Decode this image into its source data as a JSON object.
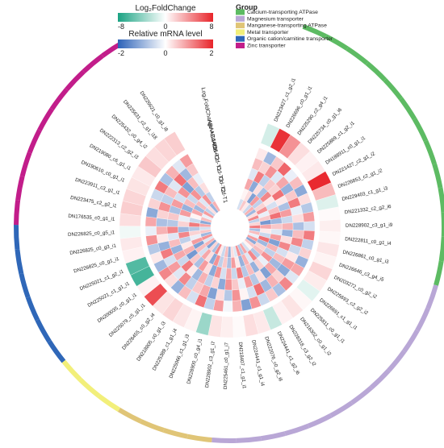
{
  "chart_data": {
    "type": "heatmap",
    "legends": {
      "fold": {
        "title": "Log₂FoldChange",
        "min": -8,
        "mid": 0,
        "max": 8,
        "ticks": [
          "-8",
          "0",
          "8"
        ],
        "colors": [
          "#1aa383",
          "#ffffff",
          "#e8242a"
        ]
      },
      "mrna": {
        "title": "Relative mRNA level",
        "min": -2,
        "mid": 0,
        "max": 2,
        "ticks": [
          "-2",
          "0",
          "2"
        ],
        "colors": [
          "#2c62b8",
          "#ffffff",
          "#e8242a"
        ]
      },
      "group": {
        "title": "Group",
        "entries": [
          {
            "name": "Calcium-transporting ATPase",
            "color": "#5dbb63"
          },
          {
            "name": "Magnesium transporter",
            "color": "#b9a7d6"
          },
          {
            "name": "Manganese-transporting ATPase",
            "color": "#e0c577"
          },
          {
            "name": "Metal transporter",
            "color": "#f2ef7a"
          },
          {
            "name": "Organic cation/carnitine transporter",
            "color": "#2f67b8"
          },
          {
            "name": "Zinc transporter",
            "color": "#c21d8a"
          }
        ]
      }
    },
    "tracks": [
      "Log₂FoldChange",
      "ABA+Cd-T3",
      "ABA+Cd-T2",
      "ABA+Cd-T1",
      "Cd-T3",
      "Cd-T2",
      "Cd-T1"
    ],
    "genes": [
      {
        "id": "DN223427_c1_g2_i1",
        "group": "Calcium-transporting ATPase",
        "fc": -1.5,
        "values": [
          0.2,
          0.6,
          -0.3,
          0.8,
          0.1,
          -0.4
        ]
      },
      {
        "id": "DN226696_c0_g1_i1",
        "group": "Calcium-transporting ATPase",
        "fc": 7.5,
        "values": [
          -0.9,
          0.4,
          1.2,
          -1.1,
          0.3,
          0.5
        ]
      },
      {
        "id": "DN225290_c2_g4_i1",
        "group": "Calcium-transporting ATPase",
        "fc": 4.0,
        "values": [
          0.5,
          1.0,
          -0.6,
          0.3,
          -1.2,
          0.2
        ]
      },
      {
        "id": "DN225734_c0_g1_i6",
        "group": "Calcium-transporting ATPase",
        "fc": 1.2,
        "values": [
          1.4,
          -0.3,
          0.5,
          -0.8,
          0.9,
          -0.5
        ]
      },
      {
        "id": "DN225869_c1_g2_i1",
        "group": "Calcium-transporting ATPase",
        "fc": 0.5,
        "values": [
          -0.2,
          0.8,
          0.4,
          1.1,
          -0.6,
          0.7
        ]
      },
      {
        "id": "DN188911_c0_g1_i1",
        "group": "Calcium-transporting ATPase",
        "fc": 0.8,
        "values": [
          0.6,
          -1.0,
          1.3,
          0.2,
          0.4,
          -0.9
        ]
      },
      {
        "id": "DN221427_c2_g1_i2",
        "group": "Calcium-transporting ATPase",
        "fc": 7.8,
        "values": [
          -1.1,
          0.5,
          0.2,
          -0.4,
          1.0,
          0.3
        ]
      },
      {
        "id": "DN226853_c2_g1_i2",
        "group": "Calcium-transporting ATPase",
        "fc": 2.5,
        "values": [
          0.3,
          1.2,
          -0.8,
          0.6,
          -0.2,
          1.1
        ]
      },
      {
        "id": "DN229403_c1_g1_i3",
        "group": "Calcium-transporting ATPase",
        "fc": -1.2,
        "values": [
          -0.7,
          -0.2,
          0.9,
          1.3,
          0.5,
          -0.6
        ]
      },
      {
        "id": "DN221332_c2_g2_i6",
        "group": "Calcium-transporting ATPase",
        "fc": 0.2,
        "values": [
          0.9,
          0.3,
          -0.5,
          -0.9,
          -1.3,
          0.4
        ]
      },
      {
        "id": "DN228902_c3_g1_i9",
        "group": "Calcium-transporting ATPase",
        "fc": 0.6,
        "values": [
          -0.4,
          -0.8,
          0.7,
          0.5,
          0.8,
          1.2
        ]
      },
      {
        "id": "DN222811_c0_g1_i4",
        "group": "Calcium-transporting ATPase",
        "fc": 0.3,
        "values": [
          1.2,
          0.6,
          -1.0,
          -0.3,
          0.2,
          -0.8
        ]
      },
      {
        "id": "DN226861_c0_g1_i3",
        "group": "Calcium-transporting ATPase",
        "fc": 0.9,
        "values": [
          -0.6,
          1.1,
          0.3,
          0.9,
          -0.5,
          0.6
        ]
      },
      {
        "id": "DN226646_c3_g4_i5",
        "group": "Magnesium transporter",
        "fc": 0.4,
        "values": [
          0.4,
          -0.5,
          1.1,
          -1.2,
          1.3,
          -0.2
        ]
      },
      {
        "id": "DN203272_c0_g2_i2",
        "group": "Magnesium transporter",
        "fc": 1.5,
        "values": [
          -1.0,
          0.2,
          -0.4,
          0.7,
          -0.9,
          0.9
        ]
      },
      {
        "id": "DN225693_c2_g2_i2",
        "group": "Magnesium transporter",
        "fc": 0.7,
        "values": [
          0.8,
          0.9,
          0.6,
          -0.6,
          0.4,
          -1.1
        ]
      },
      {
        "id": "DN226691_c1_g1_i1",
        "group": "Magnesium transporter",
        "fc": -1.0,
        "values": [
          -0.3,
          -1.1,
          -0.9,
          1.0,
          0.6,
          0.5
        ]
      },
      {
        "id": "DN225811_c0_g1_i1",
        "group": "Magnesium transporter",
        "fc": 0.3,
        "values": [
          1.1,
          0.4,
          0.8,
          -0.2,
          -0.7,
          0.1
        ]
      },
      {
        "id": "DN216302_c0_g1_i2",
        "group": "Magnesium transporter",
        "fc": 1.0,
        "values": [
          -0.8,
          0.7,
          -1.2,
          0.4,
          1.1,
          -0.4
        ]
      },
      {
        "id": "DN228318_c3_g2_i2",
        "group": "Magnesium transporter",
        "fc": 0.5,
        "values": [
          0.5,
          -0.9,
          0.3,
          -1.0,
          -0.3,
          0.8
        ]
      },
      {
        "id": "DN224441_c1_g2_i6",
        "group": "Magnesium transporter",
        "fc": -2.0,
        "values": [
          -0.5,
          1.3,
          -0.7,
          0.6,
          0.7,
          -0.7
        ]
      },
      {
        "id": "DN222076_c0_g2_i6",
        "group": "Magnesium transporter",
        "fc": 0.8,
        "values": [
          1.0,
          -0.4,
          0.9,
          -0.7,
          -1.0,
          1.0
        ]
      },
      {
        "id": "DN224441_c1_g1_i4",
        "group": "Magnesium transporter",
        "fc": 1.2,
        "values": [
          -1.2,
          0.1,
          -0.2,
          1.2,
          0.2,
          -0.3
        ]
      },
      {
        "id": "DN218407_c1_g1_i1",
        "group": "Magnesium transporter",
        "fc": 0.2,
        "values": [
          0.7,
          1.0,
          0.5,
          -0.5,
          0.9,
          0.3
        ]
      },
      {
        "id": "DN225461_c0_g1_i7",
        "group": "Magnesium transporter",
        "fc": 0.6,
        "values": [
          -0.1,
          -0.7,
          1.0,
          0.8,
          -0.8,
          -1.0
        ]
      },
      {
        "id": "DN228902_c3_g1_i7",
        "group": "Manganese-transporting ATPase",
        "fc": 1.0,
        "values": [
          0.9,
          0.3,
          -1.1,
          -0.4,
          0.5,
          0.6
        ]
      },
      {
        "id": "DN228900_c0_g4_i1",
        "group": "Manganese-transporting ATPase",
        "fc": -3.5,
        "values": [
          -0.6,
          -1.2,
          0.4,
          1.0,
          -0.6,
          -0.5
        ]
      },
      {
        "id": "DN225066_c1_g1_i3",
        "group": "Manganese-transporting ATPase",
        "fc": 0.4,
        "values": [
          1.3,
          0.8,
          -0.6,
          -1.1,
          1.0,
          0.2
        ]
      },
      {
        "id": "DN225389_c1_g1_i4",
        "group": "Manganese-transporting ATPase",
        "fc": 0.9,
        "values": [
          -0.4,
          0.5,
          0.7,
          0.3,
          -1.1,
          1.1
        ]
      },
      {
        "id": "DN218805_c0_g1_i3",
        "group": "Metal transporter",
        "fc": 1.5,
        "values": [
          0.6,
          -0.6,
          -0.9,
          0.9,
          0.3,
          -0.8
        ]
      },
      {
        "id": "DN226455_c0_g2_i4",
        "group": "Metal transporter",
        "fc": 1.0,
        "values": [
          -1.0,
          1.1,
          0.2,
          -0.8,
          0.8,
          0.4
        ]
      },
      {
        "id": "DN225079_c5_g1_i1",
        "group": "Metal transporter",
        "fc": 6.5,
        "values": [
          0.3,
          -0.3,
          1.2,
          0.5,
          -0.4,
          -1.2
        ]
      },
      {
        "id": "DN200035_c0_g1_i1",
        "group": "Organic cation/carnitine transporter",
        "fc": 0.5,
        "values": [
          1.1,
          0.9,
          -0.5,
          -1.3,
          0.6,
          0.7
        ]
      },
      {
        "id": "DN225021_c1_g1_i1",
        "group": "Organic cation/carnitine transporter",
        "fc": -6.5,
        "values": [
          -0.9,
          -0.4,
          0.8,
          0.7,
          -1.2,
          -0.3
        ]
      },
      {
        "id": "DN225021_c1_g2_i1",
        "group": "Organic cation/carnitine transporter",
        "fc": -6.0,
        "values": [
          0.2,
          1.2,
          -1.0,
          0.2,
          0.9,
          1.0
        ]
      },
      {
        "id": "DN226825_c0_g1_i1",
        "group": "Organic cation/carnitine transporter",
        "fc": 0.5,
        "values": [
          -0.7,
          -1.0,
          0.6,
          -0.6,
          -0.2,
          -0.9
        ]
      },
      {
        "id": "DN226825_c0_g3_i1",
        "group": "Organic cation/carnitine transporter",
        "fc": 0.8,
        "values": [
          1.0,
          0.2,
          -0.3,
          1.1,
          0.4,
          0.5
        ]
      },
      {
        "id": "DN226825_c0_g5_i1",
        "group": "Organic cation/carnitine transporter",
        "fc": -0.5,
        "values": [
          -0.2,
          0.7,
          1.1,
          -0.9,
          -0.7,
          -0.4
        ]
      },
      {
        "id": "DN176535_c0_g1_i1",
        "group": "Zinc transporter",
        "fc": 1.2,
        "values": [
          0.8,
          -0.8,
          -0.7,
          0.4,
          1.2,
          0.8
        ]
      },
      {
        "id": "DN223475_c2_g2_i1",
        "group": "Zinc transporter",
        "fc": 1.8,
        "values": [
          -1.1,
          0.4,
          0.5,
          -0.2,
          -0.5,
          -1.1
        ]
      },
      {
        "id": "DN223911_c3_g1_i1",
        "group": "Zinc transporter",
        "fc": 1.5,
        "values": [
          0.4,
          1.0,
          -0.8,
          0.9,
          0.1,
          0.6
        ]
      },
      {
        "id": "DN190610_c0_g1_i1",
        "group": "Zinc transporter",
        "fc": 1.0,
        "values": [
          -0.5,
          -0.6,
          0.9,
          -1.0,
          0.8,
          -0.2
        ]
      },
      {
        "id": "DN219080_c6_g1_i1",
        "group": "Zinc transporter",
        "fc": 0.8,
        "values": [
          1.2,
          0.6,
          -0.4,
          0.6,
          -0.9,
          0.9
        ]
      },
      {
        "id": "DN222313_c2_g2_i3",
        "group": "Zinc transporter",
        "fc": 2.0,
        "values": [
          -0.8,
          -0.3,
          1.0,
          -0.5,
          0.6,
          -0.6
        ]
      },
      {
        "id": "DN225432_c0_g4_i2",
        "group": "Zinc transporter",
        "fc": 1.2,
        "values": [
          0.7,
          1.3,
          -1.2,
          1.0,
          -0.3,
          0.3
        ]
      },
      {
        "id": "DN225631_c2_g1_i18",
        "group": "Zinc transporter",
        "fc": 1.5,
        "values": [
          -0.3,
          -0.9,
          0.6,
          -0.7,
          1.0,
          -1.0
        ]
      },
      {
        "id": "DN226621_c0_g1_i8",
        "group": "Zinc transporter",
        "fc": 1.8,
        "values": [
          0.9,
          0.5,
          -0.2,
          0.3,
          -0.6,
          0.7
        ]
      }
    ]
  }
}
